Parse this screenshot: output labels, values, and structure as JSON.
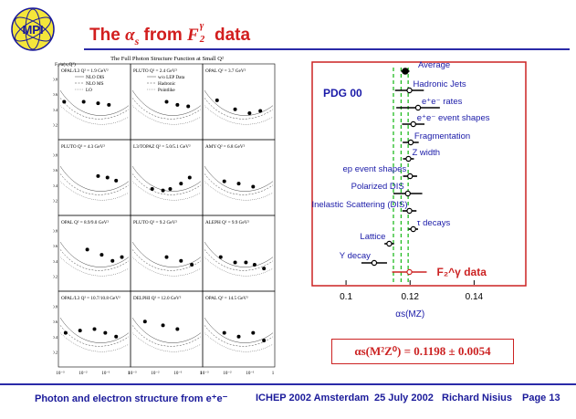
{
  "logo": {
    "text": "MPI"
  },
  "title": {
    "prefix": "The ",
    "alpha": "α",
    "alpha_sub": "s",
    "from": " from ",
    "F": "F",
    "F_sub": "2",
    "F_sup": "γ",
    "suffix": " data"
  },
  "left_figure": {
    "title": "The Full Photon Structure Function at Small Q²",
    "ylabel": "F₂/α(x,Q²)",
    "xlabel": "x",
    "x_ticks": [
      "10⁻³",
      "10⁻²",
      "10⁻¹",
      "1"
    ],
    "y_ticks": [
      "0.2",
      "0.4",
      "0.6",
      "0.8"
    ],
    "legend_left": [
      "NLO DIS",
      "NLO MS",
      "LO"
    ],
    "legend_mid": [
      "w/o LEP Data",
      "Hadronic",
      "Pointlike"
    ],
    "panels": [
      "OPAL/L3  Q² = 1.9 GeV²",
      "PLUTO  Q² = 2.4 GeV²",
      "OPAL  Q² = 3.7 GeV²",
      "PLUTO  Q² = 4.3 GeV²",
      "L3/TOPAZ  Q² = 5.0/5.1 GeV²",
      "AMY  Q² = 6.8 GeV²",
      "OPAL  Q² = 8.9/9.0 GeV²",
      "PLUTO  Q² = 9.2 GeV²",
      "ALEPH  Q² = 9.9 GeV²",
      "OPAL/L3  Q² = 10.7/10.8 GeV²",
      "DELPHI  Q² = 12.0 GeV²",
      "OPAL  Q² = 14.5 GeV²"
    ]
  },
  "chart_data": {
    "type": "scatter",
    "title": "",
    "xlabel": "αs(MZ)",
    "xlim": [
      0.09,
      0.155
    ],
    "x_ticks": [
      0.1,
      0.12,
      0.14
    ],
    "legend_label": "PDG 00",
    "band_lines": [
      0.1148,
      0.1172,
      0.1194
    ],
    "points": [
      {
        "label": "Average",
        "value": 0.1185,
        "err": 0.0013
      },
      {
        "label": "Hadronic Jets",
        "value": 0.1198,
        "err": 0.0045
      },
      {
        "label": "e⁺e⁻ rates",
        "value": 0.1225,
        "err": 0.0068
      },
      {
        "label": "e⁺e⁻ event shapes",
        "value": 0.121,
        "err": 0.0035
      },
      {
        "label": "Fragmentation",
        "value": 0.1202,
        "err": 0.0025
      },
      {
        "label": "Z width",
        "value": 0.1195,
        "err": 0.0017
      },
      {
        "label": "ep event shapes",
        "value": 0.12,
        "err": 0.0022
      },
      {
        "label": "Polarized DIS",
        "value": 0.1193,
        "err": 0.0045
      },
      {
        "label": "Deep Inelastic Scattering (DIS)",
        "value": 0.1198,
        "err": 0.0022
      },
      {
        "label": "τ decays",
        "value": 0.121,
        "err": 0.0015
      },
      {
        "label": "Lattice",
        "value": 0.1135,
        "err": 0.0015
      },
      {
        "label": "Υ decay",
        "value": 0.1088,
        "err": 0.004
      },
      {
        "label": "F₂^γ data",
        "value": 0.1198,
        "err": 0.0054,
        "highlight": true
      }
    ],
    "highlight_color": "#cc2222",
    "point_color": "#000000",
    "band_color": "#22bb22"
  },
  "result": {
    "text": "αs(M²Z⁰) = 0.1198 ± 0.0054"
  },
  "footer": {
    "left": "Photon and electron structure from e⁺e⁻",
    "conference": "ICHEP 2002 Amsterdam",
    "date": "25 July 2002",
    "author": "Richard Nisius",
    "page": "Page 13"
  },
  "colors": {
    "title": "#d21e1e",
    "blue": "#2a2aa8",
    "footer": "#1a1a9a"
  }
}
